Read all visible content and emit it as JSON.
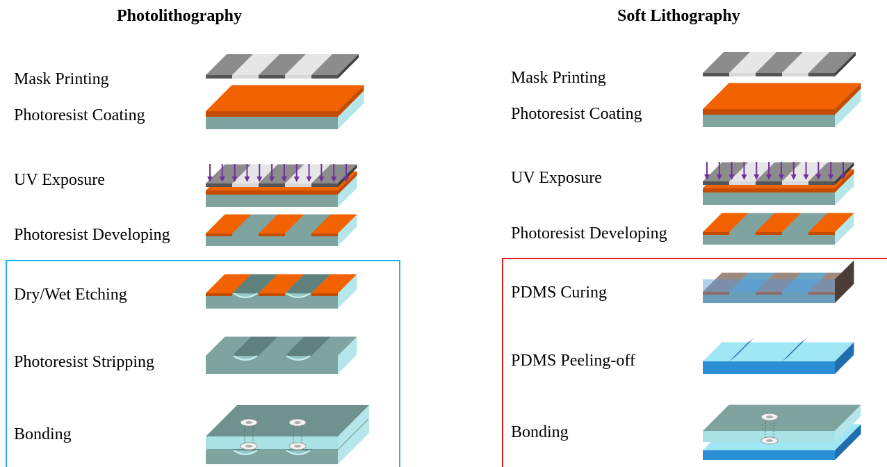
{
  "colors": {
    "photoresist": "#f26200",
    "photoresist_side": "#c44c00",
    "substrate_top": "#7fa39f",
    "substrate_front": "#7fa39f",
    "substrate_side": "#b5e7ea",
    "mask_dark": "#555555",
    "mask_light": "#d9d9d9",
    "uv_arrow": "#7030a0",
    "pdms": "#2b8fd6",
    "pdms_light": "#9fe7f4",
    "photolithography_frame": "#1fb5ea",
    "soft_lithography_frame": "#e21c1c"
  },
  "photolithography": {
    "title": "Photolithography",
    "steps": [
      {
        "label": "Mask Printing",
        "icon": "mask-icon"
      },
      {
        "label": "Photoresist Coating",
        "icon": "coated-substrate-icon"
      },
      {
        "label": "UV Exposure",
        "icon": "uv-exposure-icon"
      },
      {
        "label": "Photoresist Developing",
        "icon": "developed-photoresist-icon"
      },
      {
        "label": "Dry/Wet Etching",
        "icon": "etched-channels-icon"
      },
      {
        "label": "Photoresist Stripping",
        "icon": "stripped-substrate-icon"
      },
      {
        "label": "Bonding",
        "icon": "bonded-chip-icon"
      }
    ]
  },
  "soft_lithography": {
    "title": "Soft Lithography",
    "steps": [
      {
        "label": "Mask Printing",
        "icon": "mask-icon"
      },
      {
        "label": "Photoresist Coating",
        "icon": "coated-substrate-icon"
      },
      {
        "label": "UV Exposure",
        "icon": "uv-exposure-icon"
      },
      {
        "label": "Photoresist Developing",
        "icon": "developed-photoresist-icon"
      },
      {
        "label": "PDMS Curing",
        "icon": "pdms-curing-icon"
      },
      {
        "label": "PDMS Peeling-off",
        "icon": "pdms-peeled-icon"
      },
      {
        "label": "Bonding",
        "icon": "bonded-pdms-chip-icon"
      }
    ]
  }
}
